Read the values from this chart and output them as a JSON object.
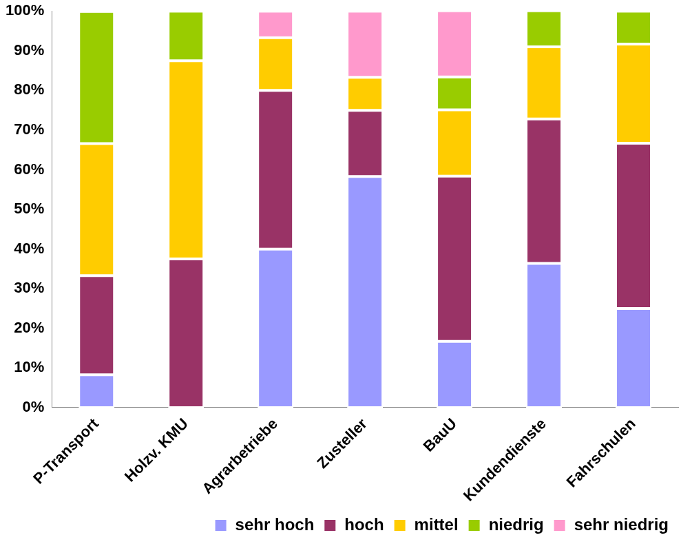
{
  "chart_data": {
    "type": "bar",
    "stacked": true,
    "categories": [
      "P-Transport",
      "Holzv. KMU",
      "Agrarbetriebe",
      "Zusteller",
      "BauU",
      "Kundendienste",
      "Fahrschulen"
    ],
    "series": [
      {
        "name": "sehr hoch",
        "color": "#9999ff",
        "values": [
          8.3,
          0,
          40,
          58.3,
          16.7,
          36.4,
          25
        ]
      },
      {
        "name": "hoch",
        "color": "#993366",
        "values": [
          25,
          37.5,
          40,
          16.7,
          41.7,
          36.4,
          41.7
        ]
      },
      {
        "name": "mittel",
        "color": "#ffcc00",
        "values": [
          33.3,
          50,
          13.3,
          8.3,
          16.7,
          18.2,
          25
        ]
      },
      {
        "name": "niedrig",
        "color": "#99cc00",
        "values": [
          33.3,
          12.5,
          0,
          0,
          8.3,
          9.1,
          8.3
        ]
      },
      {
        "name": "sehr niedrig",
        "color": "#ff99cc",
        "values": [
          0,
          0,
          6.7,
          16.7,
          16.7,
          0,
          0
        ]
      }
    ],
    "ylim": [
      0,
      100
    ],
    "yticks": [
      {
        "value": 0,
        "label": "0%"
      },
      {
        "value": 10,
        "label": "10%"
      },
      {
        "value": 20,
        "label": "20%"
      },
      {
        "value": 30,
        "label": "30%"
      },
      {
        "value": 40,
        "label": "40%"
      },
      {
        "value": 50,
        "label": "50%"
      },
      {
        "value": 60,
        "label": "60%"
      },
      {
        "value": 70,
        "label": "70%"
      },
      {
        "value": 80,
        "label": "80%"
      },
      {
        "value": 90,
        "label": "90%"
      },
      {
        "value": 100,
        "label": "100%"
      }
    ],
    "grid": false,
    "legend": "bottom"
  }
}
